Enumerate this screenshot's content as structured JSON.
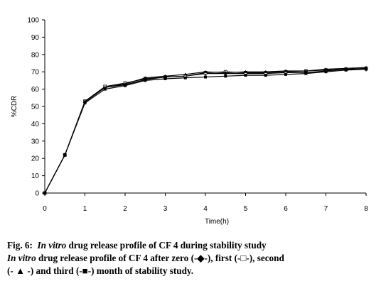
{
  "chart_data": {
    "type": "line",
    "title": "",
    "xlabel": "Time(h)",
    "ylabel": "%CDR",
    "xlim": [
      0,
      8
    ],
    "ylim": [
      0,
      100
    ],
    "x_ticks": [
      "0",
      "1",
      "2",
      "3",
      "4",
      "5",
      "6",
      "7",
      "8"
    ],
    "y_ticks": [
      "0",
      "10",
      "20",
      "30",
      "40",
      "50",
      "60",
      "70",
      "80",
      "90",
      "100"
    ],
    "grid": false,
    "legend": "none",
    "x": [
      0,
      0.5,
      1,
      1.5,
      2,
      2.5,
      3,
      3.5,
      4,
      4.5,
      5,
      5.5,
      6,
      6.5,
      7,
      7.5,
      8
    ],
    "series": [
      {
        "values": [
          0,
          22,
          52.5,
          61,
          62.5,
          65.5,
          67,
          67.5,
          69,
          69,
          69,
          69,
          69.5,
          69.5,
          70.5,
          71.5,
          71.5
        ],
        "marker": "diamond"
      },
      {
        "values": [
          0,
          22,
          53,
          61.5,
          63.5,
          66,
          67,
          67.5,
          69.5,
          70,
          69.5,
          69.5,
          70,
          70.5,
          71,
          71.5,
          72
        ],
        "marker": "square-open"
      },
      {
        "values": [
          0,
          22,
          53,
          61,
          63,
          66.5,
          67.5,
          68.5,
          70,
          69.5,
          70,
          70,
          70.5,
          70.5,
          71.5,
          72,
          72.5
        ],
        "marker": "triangle"
      },
      {
        "values": [
          0,
          22,
          52,
          60,
          62,
          65,
          66,
          66.5,
          67,
          67.5,
          68,
          68,
          68.5,
          69,
          70,
          71,
          71.5
        ],
        "marker": "square"
      }
    ],
    "colors": {
      "line": "#000000",
      "axis": "#000000",
      "background": "#ffffff"
    }
  },
  "caption": {
    "fig_label": "Fig. 6:",
    "line1_italic": "In vitro",
    "line1_rest": " drug release profile of CF 4 during stability study",
    "line2_italic": "In vitro",
    "line2_rest": " drug release profile of CF 4 after zero (-◆-), first (-□-), second",
    "line3": "(- ▲ -) and third (-■-) month of stability study."
  }
}
